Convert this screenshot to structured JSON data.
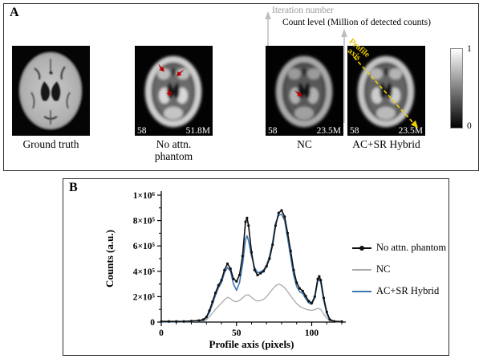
{
  "figure": {
    "panel_a": {
      "label": "A",
      "annotations": {
        "iteration": "Iteration number",
        "count_level": "Count level (Million of detected counts)"
      },
      "images": [
        {
          "caption": "Ground truth"
        },
        {
          "caption": "No attn. phantom",
          "iteration": "58",
          "counts": "51.8M"
        },
        {
          "caption": "NC",
          "iteration": "58",
          "counts": "23.5M"
        },
        {
          "caption": "AC+SR Hybrid",
          "iteration": "58",
          "counts": "23.5M",
          "profile_label_line1": "Profile",
          "profile_label_line2": "axis"
        }
      ],
      "colorbar": {
        "max": "1",
        "min": "0"
      }
    },
    "panel_b": {
      "label": "B"
    }
  },
  "chart_data": {
    "type": "line",
    "title": "",
    "xlabel": "Profile axis (pixels)",
    "ylabel": "Counts (a.u.)",
    "xlim": [
      0,
      120
    ],
    "ylim": [
      0,
      1000000
    ],
    "grid": false,
    "legend_position": "right",
    "xticks": [
      {
        "v": 0,
        "label": "0"
      },
      {
        "v": 50,
        "label": "50"
      },
      {
        "v": 100,
        "label": "100"
      }
    ],
    "x_minor": [
      10,
      20,
      30,
      40,
      60,
      70,
      80,
      90,
      110,
      120
    ],
    "yticks": [
      {
        "v": 0,
        "label": "0"
      },
      {
        "v": 200000,
        "label": "2×10⁵"
      },
      {
        "v": 400000,
        "label": "4×10⁵"
      },
      {
        "v": 600000,
        "label": "6×10⁵"
      },
      {
        "v": 800000,
        "label": "8×10⁵"
      },
      {
        "v": 1000000,
        "label": "1×10⁶"
      }
    ],
    "y_minor": [
      100000,
      300000,
      500000,
      700000,
      900000
    ],
    "series": [
      {
        "name": "No attn. phantom",
        "color": "#111111",
        "marker": true,
        "points": [
          [
            0,
            5000
          ],
          [
            5,
            5000
          ],
          [
            10,
            5000
          ],
          [
            15,
            5000
          ],
          [
            20,
            8000
          ],
          [
            25,
            12000
          ],
          [
            28,
            20000
          ],
          [
            30,
            40000
          ],
          [
            32,
            90000
          ],
          [
            34,
            160000
          ],
          [
            36,
            230000
          ],
          [
            38,
            290000
          ],
          [
            40,
            330000
          ],
          [
            42,
            410000
          ],
          [
            44,
            460000
          ],
          [
            46,
            420000
          ],
          [
            48,
            340000
          ],
          [
            50,
            320000
          ],
          [
            52,
            370000
          ],
          [
            54,
            520000
          ],
          [
            56,
            790000
          ],
          [
            57,
            820000
          ],
          [
            58,
            760000
          ],
          [
            60,
            550000
          ],
          [
            62,
            410000
          ],
          [
            64,
            370000
          ],
          [
            66,
            385000
          ],
          [
            68,
            400000
          ],
          [
            70,
            440000
          ],
          [
            72,
            500000
          ],
          [
            74,
            610000
          ],
          [
            76,
            760000
          ],
          [
            78,
            860000
          ],
          [
            80,
            880000
          ],
          [
            82,
            830000
          ],
          [
            84,
            700000
          ],
          [
            86,
            560000
          ],
          [
            88,
            410000
          ],
          [
            90,
            310000
          ],
          [
            92,
            265000
          ],
          [
            94,
            245000
          ],
          [
            96,
            205000
          ],
          [
            98,
            165000
          ],
          [
            100,
            150000
          ],
          [
            102,
            200000
          ],
          [
            104,
            340000
          ],
          [
            105,
            360000
          ],
          [
            106,
            330000
          ],
          [
            108,
            190000
          ],
          [
            110,
            80000
          ],
          [
            112,
            20000
          ],
          [
            115,
            6000
          ],
          [
            120,
            4000
          ]
        ]
      },
      {
        "name": "NC",
        "color": "#aaaaaa",
        "marker": false,
        "points": [
          [
            0,
            2000
          ],
          [
            5,
            2000
          ],
          [
            10,
            2000
          ],
          [
            15,
            2000
          ],
          [
            20,
            3000
          ],
          [
            25,
            5000
          ],
          [
            28,
            9000
          ],
          [
            30,
            18000
          ],
          [
            32,
            40000
          ],
          [
            34,
            70000
          ],
          [
            36,
            100000
          ],
          [
            38,
            125000
          ],
          [
            40,
            150000
          ],
          [
            42,
            175000
          ],
          [
            44,
            195000
          ],
          [
            46,
            185000
          ],
          [
            48,
            165000
          ],
          [
            50,
            160000
          ],
          [
            52,
            170000
          ],
          [
            54,
            190000
          ],
          [
            56,
            210000
          ],
          [
            58,
            215000
          ],
          [
            60,
            195000
          ],
          [
            62,
            175000
          ],
          [
            64,
            165000
          ],
          [
            66,
            170000
          ],
          [
            68,
            180000
          ],
          [
            70,
            200000
          ],
          [
            72,
            230000
          ],
          [
            74,
            260000
          ],
          [
            76,
            285000
          ],
          [
            78,
            300000
          ],
          [
            80,
            290000
          ],
          [
            82,
            270000
          ],
          [
            84,
            240000
          ],
          [
            86,
            205000
          ],
          [
            88,
            175000
          ],
          [
            90,
            145000
          ],
          [
            92,
            125000
          ],
          [
            94,
            112000
          ],
          [
            96,
            102000
          ],
          [
            98,
            95000
          ],
          [
            100,
            92000
          ],
          [
            102,
            98000
          ],
          [
            104,
            108000
          ],
          [
            106,
            100000
          ],
          [
            108,
            62000
          ],
          [
            110,
            30000
          ],
          [
            112,
            10000
          ],
          [
            115,
            3000
          ],
          [
            120,
            2000
          ]
        ]
      },
      {
        "name": "AC+SR Hybrid",
        "color": "#3a76b5",
        "marker": false,
        "points": [
          [
            0,
            2000
          ],
          [
            5,
            2000
          ],
          [
            10,
            2000
          ],
          [
            15,
            3000
          ],
          [
            20,
            5000
          ],
          [
            25,
            9000
          ],
          [
            28,
            16000
          ],
          [
            30,
            32000
          ],
          [
            32,
            75000
          ],
          [
            34,
            140000
          ],
          [
            36,
            210000
          ],
          [
            38,
            270000
          ],
          [
            40,
            310000
          ],
          [
            42,
            390000
          ],
          [
            44,
            430000
          ],
          [
            46,
            400000
          ],
          [
            48,
            300000
          ],
          [
            50,
            250000
          ],
          [
            52,
            310000
          ],
          [
            54,
            450000
          ],
          [
            56,
            650000
          ],
          [
            57,
            680000
          ],
          [
            58,
            640000
          ],
          [
            60,
            520000
          ],
          [
            62,
            430000
          ],
          [
            64,
            390000
          ],
          [
            66,
            395000
          ],
          [
            68,
            410000
          ],
          [
            70,
            450000
          ],
          [
            72,
            520000
          ],
          [
            74,
            630000
          ],
          [
            76,
            780000
          ],
          [
            78,
            840000
          ],
          [
            80,
            850000
          ],
          [
            82,
            800000
          ],
          [
            84,
            660000
          ],
          [
            86,
            510000
          ],
          [
            88,
            370000
          ],
          [
            90,
            280000
          ],
          [
            92,
            240000
          ],
          [
            94,
            225000
          ],
          [
            96,
            185000
          ],
          [
            98,
            150000
          ],
          [
            100,
            140000
          ],
          [
            102,
            190000
          ],
          [
            104,
            320000
          ],
          [
            105,
            340000
          ],
          [
            106,
            310000
          ],
          [
            108,
            170000
          ],
          [
            110,
            65000
          ],
          [
            112,
            15000
          ],
          [
            115,
            4000
          ],
          [
            120,
            3000
          ]
        ]
      }
    ]
  }
}
